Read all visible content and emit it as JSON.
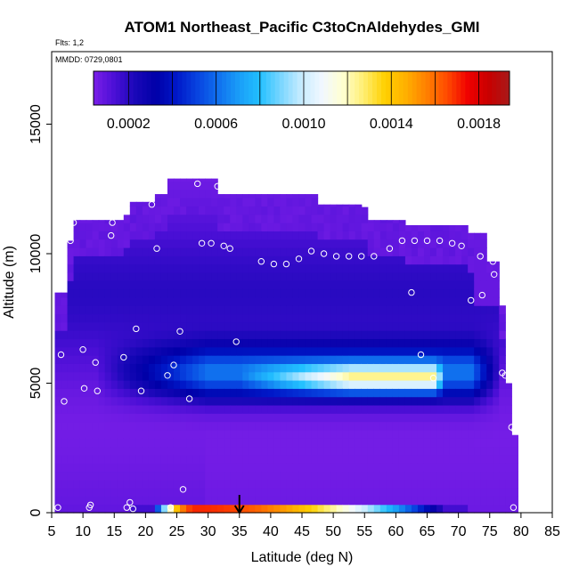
{
  "chart_data": {
    "type": "heatmap",
    "title": "ATOM1 Northeast_Pacific C3toCnAldehydes_GMI",
    "flights_label": "Flts: 1,2",
    "dates_label": "MMDD: 0729,0801",
    "xlabel": "Latitude (deg N)",
    "ylabel": "Altitude (m)",
    "xlim": [
      5,
      85
    ],
    "ylim": [
      0,
      17800
    ],
    "xticks": [
      "5",
      "10",
      "15",
      "20",
      "25",
      "30",
      "35",
      "40",
      "45",
      "50",
      "55",
      "60",
      "65",
      "70",
      "75",
      "80",
      "85"
    ],
    "yticks": [
      "0",
      "5000",
      "10000",
      "15000"
    ],
    "colorbar": {
      "range": [
        4e-05,
        0.00194
      ],
      "ticks": [
        "0.0002",
        "0.0006",
        "0.0010",
        "0.0014",
        "0.0018"
      ],
      "colors": [
        "#7a1fe8",
        "#4b0fd6",
        "#1a08b8",
        "#0000a8",
        "#0018c8",
        "#0844e0",
        "#1070ee",
        "#1a9ef8",
        "#22c0ff",
        "#7ad6ff",
        "#c8ecff",
        "#f2f8ff",
        "#ffffd0",
        "#ffee70",
        "#ffd000",
        "#ffb000",
        "#ff8000",
        "#ff4a00",
        "#f00000",
        "#c80000",
        "#a81a1a"
      ]
    },
    "grid": false,
    "arrow_latitude": 35,
    "domain": {
      "lat_min": 5.5,
      "lat_max": 79.5,
      "alt_max": 13000,
      "columns": [
        {
          "lat": 6,
          "top": 8500
        },
        {
          "lat": 7.5,
          "top": 10500
        },
        {
          "lat": 9,
          "top": 11300
        },
        {
          "lat": 17,
          "top": 11500
        },
        {
          "lat": 18,
          "top": 12000
        },
        {
          "lat": 22,
          "top": 12300
        },
        {
          "lat": 24,
          "top": 12900
        },
        {
          "lat": 31,
          "top": 12900
        },
        {
          "lat": 32,
          "top": 12300
        },
        {
          "lat": 47,
          "top": 12300
        },
        {
          "lat": 48,
          "top": 11900
        },
        {
          "lat": 55,
          "top": 11800
        },
        {
          "lat": 56,
          "top": 11300
        },
        {
          "lat": 62,
          "top": 11100
        },
        {
          "lat": 72,
          "top": 10800
        },
        {
          "lat": 75,
          "top": 9700
        },
        {
          "lat": 77,
          "top": 8000
        },
        {
          "lat": 78,
          "top": 5000
        },
        {
          "lat": 79,
          "top": 3000
        }
      ]
    },
    "features": {
      "upper_band": {
        "alt_min": 6800,
        "alt_max": 11200,
        "value": 0.00018
      },
      "mid_plume": {
        "lat_min": 12,
        "lat_max": 73,
        "alt_min": 4200,
        "alt_max": 6600,
        "value": 0.00068
      },
      "core_plume": {
        "lat_min": 45,
        "lat_max": 68,
        "alt_min": 4900,
        "alt_max": 5800,
        "value": 0.00125
      },
      "surface_plume": {
        "lat_min": 19,
        "lat_max": 62,
        "alt_max": 400,
        "peak_lat": 28,
        "peak_value": 0.0017
      }
    },
    "observations": [
      {
        "lat": 6,
        "alt": 200
      },
      {
        "lat": 6.5,
        "alt": 6100
      },
      {
        "lat": 7,
        "alt": 4300
      },
      {
        "lat": 8,
        "alt": 10500
      },
      {
        "lat": 8.5,
        "alt": 11200
      },
      {
        "lat": 10,
        "alt": 6300
      },
      {
        "lat": 10.2,
        "alt": 4800
      },
      {
        "lat": 11,
        "alt": 200
      },
      {
        "lat": 11.2,
        "alt": 300
      },
      {
        "lat": 12,
        "alt": 5800
      },
      {
        "lat": 12.3,
        "alt": 4700
      },
      {
        "lat": 14.5,
        "alt": 10700
      },
      {
        "lat": 14.7,
        "alt": 11200
      },
      {
        "lat": 16.5,
        "alt": 6000
      },
      {
        "lat": 17,
        "alt": 200
      },
      {
        "lat": 17.5,
        "alt": 400
      },
      {
        "lat": 18,
        "alt": 150
      },
      {
        "lat": 18.5,
        "alt": 7100
      },
      {
        "lat": 19.3,
        "alt": 4700
      },
      {
        "lat": 21,
        "alt": 11900
      },
      {
        "lat": 21.8,
        "alt": 10200
      },
      {
        "lat": 23.5,
        "alt": 5300
      },
      {
        "lat": 24,
        "alt": 200
      },
      {
        "lat": 24.5,
        "alt": 5700
      },
      {
        "lat": 25.5,
        "alt": 7000
      },
      {
        "lat": 26,
        "alt": 900
      },
      {
        "lat": 27,
        "alt": 4400
      },
      {
        "lat": 28.3,
        "alt": 12700
      },
      {
        "lat": 29,
        "alt": 10400
      },
      {
        "lat": 30.5,
        "alt": 10400
      },
      {
        "lat": 31.5,
        "alt": 12600
      },
      {
        "lat": 32.5,
        "alt": 10300
      },
      {
        "lat": 33.5,
        "alt": 10200
      },
      {
        "lat": 34.5,
        "alt": 6600
      },
      {
        "lat": 38.5,
        "alt": 9700
      },
      {
        "lat": 40.5,
        "alt": 9600
      },
      {
        "lat": 42.5,
        "alt": 9600
      },
      {
        "lat": 44.5,
        "alt": 9800
      },
      {
        "lat": 46.5,
        "alt": 10100
      },
      {
        "lat": 48.5,
        "alt": 10000
      },
      {
        "lat": 50.5,
        "alt": 9900
      },
      {
        "lat": 52.5,
        "alt": 9900
      },
      {
        "lat": 54.5,
        "alt": 9900
      },
      {
        "lat": 56.5,
        "alt": 9900
      },
      {
        "lat": 59,
        "alt": 10200
      },
      {
        "lat": 61,
        "alt": 10500
      },
      {
        "lat": 62.5,
        "alt": 8500
      },
      {
        "lat": 63,
        "alt": 10500
      },
      {
        "lat": 64,
        "alt": 6100
      },
      {
        "lat": 65,
        "alt": 10500
      },
      {
        "lat": 66,
        "alt": 5200
      },
      {
        "lat": 67,
        "alt": 10500
      },
      {
        "lat": 67.5,
        "alt": 11300
      },
      {
        "lat": 69,
        "alt": 10400
      },
      {
        "lat": 70.5,
        "alt": 10300
      },
      {
        "lat": 72,
        "alt": 8200
      },
      {
        "lat": 73.5,
        "alt": 9900
      },
      {
        "lat": 73.8,
        "alt": 8400
      },
      {
        "lat": 75.5,
        "alt": 9700
      },
      {
        "lat": 75.7,
        "alt": 9200
      },
      {
        "lat": 77,
        "alt": 5400
      },
      {
        "lat": 77.5,
        "alt": 5300
      },
      {
        "lat": 78.5,
        "alt": 3300
      },
      {
        "lat": 79,
        "alt": 3200
      },
      {
        "lat": 78.8,
        "alt": 200
      }
    ]
  }
}
